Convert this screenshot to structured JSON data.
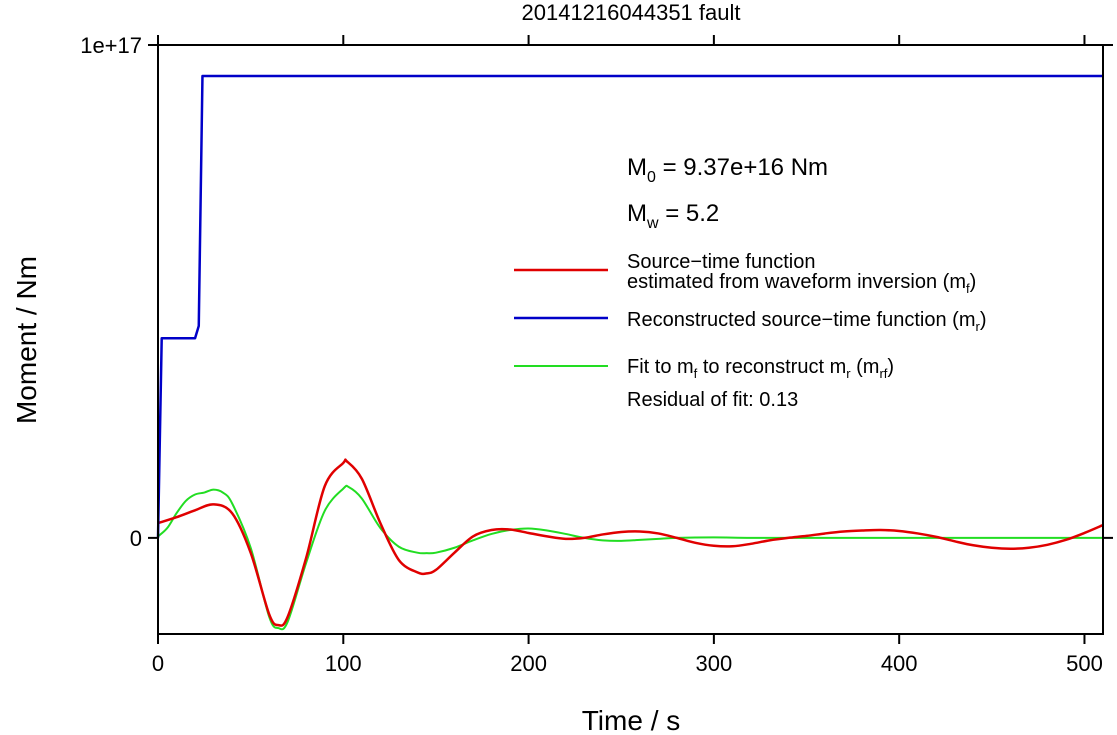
{
  "chart_data": {
    "type": "line",
    "title": "20141216044351 fault",
    "xlabel": "Time / s",
    "ylabel": "Moment / Nm",
    "xlim": [
      0,
      510
    ],
    "ylim": [
      -1.95e+16,
      1e+17
    ],
    "grid": false,
    "x_ticks": [
      0,
      100,
      200,
      300,
      400,
      500
    ],
    "x_tick_labels": [
      "0",
      "100",
      "200",
      "300",
      "400",
      "500"
    ],
    "y_ticks": [
      0,
      1e+17
    ],
    "y_tick_labels": [
      "0",
      "1e+17"
    ],
    "annotations": {
      "m0": {
        "symbol": "M",
        "sub": "0",
        "text": " = 9.37e+16 Nm"
      },
      "mw": {
        "symbol": "M",
        "sub": "w",
        "text": " = 5.2"
      },
      "residual": "Residual of fit: 0.13"
    },
    "legend_position": "right",
    "series": [
      {
        "name": "Source−time function estimated from waveform inversion (mᶠ)",
        "legend_line1": "Source−time function",
        "legend_line2_pre": "estimated from waveform inversion (m",
        "legend_line2_sub": "f",
        "legend_line2_post": ")",
        "color": "#e00000",
        "x": [
          0,
          10,
          20,
          30,
          40,
          50,
          60,
          65,
          70,
          80,
          90,
          100,
          102,
          110,
          120,
          130,
          140,
          145,
          150,
          160,
          170,
          180,
          190,
          200,
          210,
          220,
          230,
          240,
          250,
          260,
          270,
          280,
          290,
          300,
          310,
          320,
          330,
          340,
          350,
          360,
          370,
          380,
          390,
          400,
          410,
          420,
          430,
          440,
          450,
          460,
          470,
          480,
          490,
          500,
          510
        ],
        "y": [
          3000000000000000.0,
          4200000000000000.0,
          5600000000000000.0,
          6800000000000000.0,
          5000000000000000.0,
          -3000000000000000.0,
          -1.55e+16,
          -1.77e+16,
          -1.6e+16,
          -4000000000000000.0,
          1.05e+16,
          1.52e+16,
          1.55e+16,
          1.2e+16,
          3000000000000000.0,
          -4500000000000000.0,
          -7000000000000000.0,
          -7200000000000000.0,
          -6500000000000000.0,
          -3000000000000000.0,
          300000000000000.0,
          1600000000000000.0,
          1700000000000000.0,
          1000000000000000.0,
          300000000000000.0,
          -200000000000000.0,
          0.0,
          700000000000000.0,
          1200000000000000.0,
          1300000000000000.0,
          900000000000000.0,
          0.0,
          -1000000000000000.0,
          -1600000000000000.0,
          -1700000000000000.0,
          -1200000000000000.0,
          -500000000000000.0,
          0.0,
          400000000000000.0,
          900000000000000.0,
          1300000000000000.0,
          1500000000000000.0,
          1600000000000000.0,
          1400000000000000.0,
          900000000000000.0,
          200000000000000.0,
          -700000000000000.0,
          -1500000000000000.0,
          -2000000000000000.0,
          -2200000000000000.0,
          -2000000000000000.0,
          -1400000000000000.0,
          -400000000000000.0,
          1000000000000000.0,
          2600000000000000.0
        ]
      },
      {
        "name": "Reconstructed source−time function (mᵣ)",
        "legend_pre": "Reconstructed source−time function (m",
        "legend_sub": "r",
        "legend_post": ")",
        "color": "#0000c8",
        "x": [
          0,
          2,
          20,
          22,
          24,
          510
        ],
        "y": [
          0,
          4.05e+16,
          4.05e+16,
          4.3e+16,
          9.37e+16,
          9.37e+16
        ]
      },
      {
        "name": "Fit to mᶠ to reconstruct mᵣ (mᵣᶠ)",
        "legend_pre1": "Fit to m",
        "legend_sub1": "f",
        "legend_mid": " to reconstruct m",
        "legend_sub2": "r",
        "legend_mid2": " (m",
        "legend_sub3": "rf",
        "legend_post": ")",
        "color": "#22dd22",
        "x": [
          0,
          5,
          10,
          15,
          20,
          25,
          30,
          35,
          40,
          50,
          60,
          65,
          70,
          80,
          90,
          100,
          103,
          110,
          120,
          130,
          140,
          145,
          150,
          160,
          170,
          180,
          190,
          200,
          210,
          220,
          230,
          240,
          250,
          260,
          270,
          280,
          300,
          320,
          350,
          400,
          450,
          510
        ],
        "y": [
          300000000000000.0,
          2000000000000000.0,
          5000000000000000.0,
          7500000000000000.0,
          8800000000000000.0,
          9200000000000000.0,
          9800000000000000.0,
          9200000000000000.0,
          7000000000000000.0,
          -2000000000000000.0,
          -1.6e+16,
          -1.83e+16,
          -1.7e+16,
          -5000000000000000.0,
          5500000000000000.0,
          1e+16,
          1.03e+16,
          8000000000000000.0,
          2000000000000000.0,
          -1800000000000000.0,
          -3000000000000000.0,
          -3100000000000000.0,
          -3000000000000000.0,
          -2000000000000000.0,
          -500000000000000.0,
          800000000000000.0,
          1600000000000000.0,
          1900000000000000.0,
          1500000000000000.0,
          800000000000000.0,
          0.0,
          -500000000000000.0,
          -600000000000000.0,
          -400000000000000.0,
          -200000000000000.0,
          0.0,
          100000000000000.0,
          0.0,
          0.0,
          0.0,
          0.0,
          0.0
        ]
      }
    ]
  }
}
